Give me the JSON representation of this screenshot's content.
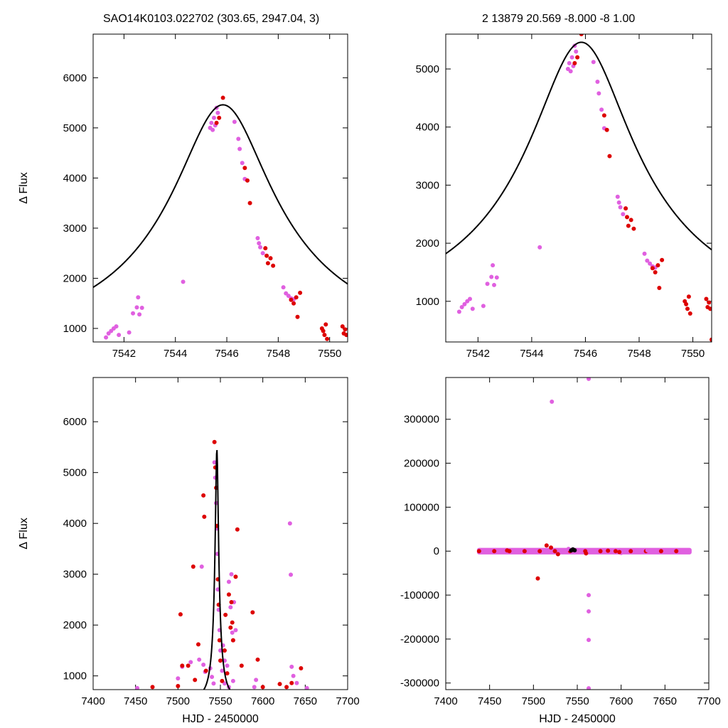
{
  "header": {
    "left": "SAO14K0103.022702 (303.65, 2947.04,    3)",
    "right": "2   13879   20.569   -8.000   -8   1.00"
  },
  "colors": {
    "band_a": "#e060e0",
    "band_b": "#dd0000",
    "model": "#000000"
  },
  "chart_data": [
    {
      "type": "scatter",
      "panel": "top-left",
      "xlim": [
        7540.8,
        7550.7
      ],
      "ylim": [
        730,
        6870
      ],
      "xticks": [
        7542,
        7544,
        7546,
        7548,
        7550
      ],
      "yticks": [
        1000,
        2000,
        3000,
        4000,
        5000,
        6000
      ],
      "xlabel": "",
      "ylabel": "Δ Flux",
      "model": {
        "t0": 7545.85,
        "fmax": 5460,
        "f0": 550,
        "u0": 0.155,
        "tE": 12.2
      },
      "series": [
        {
          "color": "#e060e0",
          "points": [
            [
              7541.3,
              820
            ],
            [
              7541.4,
              900
            ],
            [
              7541.5,
              950
            ],
            [
              7541.6,
              1000
            ],
            [
              7541.7,
              1040
            ],
            [
              7541.8,
              870
            ],
            [
              7542.2,
              920
            ],
            [
              7542.35,
              1300
            ],
            [
              7542.5,
              1420
            ],
            [
              7542.55,
              1620
            ],
            [
              7542.6,
              1280
            ],
            [
              7542.7,
              1410
            ],
            [
              7544.3,
              1930
            ],
            [
              7545.35,
              5000
            ],
            [
              7545.4,
              5100
            ],
            [
              7545.45,
              4960
            ],
            [
              7545.5,
              5200
            ],
            [
              7545.55,
              5050
            ],
            [
              7545.6,
              5400
            ],
            [
              7545.65,
              5300
            ],
            [
              7546.3,
              5120
            ],
            [
              7546.45,
              4780
            ],
            [
              7546.5,
              4580
            ],
            [
              7546.6,
              4300
            ],
            [
              7546.7,
              3980
            ],
            [
              7547.2,
              2800
            ],
            [
              7547.25,
              2700
            ],
            [
              7547.3,
              2620
            ],
            [
              7547.4,
              2500
            ],
            [
              7548.2,
              1820
            ],
            [
              7548.3,
              1700
            ],
            [
              7548.4,
              1650
            ],
            [
              7548.5,
              1600
            ],
            [
              7548.6,
              1580
            ]
          ]
        },
        {
          "color": "#dd0000",
          "points": [
            [
              7545.6,
              5100
            ],
            [
              7545.7,
              5200
            ],
            [
              7545.85,
              5600
            ],
            [
              7546.7,
              4200
            ],
            [
              7546.8,
              3950
            ],
            [
              7546.9,
              3500
            ],
            [
              7547.5,
              2600
            ],
            [
              7547.55,
              2450
            ],
            [
              7547.6,
              2300
            ],
            [
              7547.7,
              2400
            ],
            [
              7547.8,
              2250
            ],
            [
              7548.5,
              1570
            ],
            [
              7548.6,
              1500
            ],
            [
              7548.7,
              1620
            ],
            [
              7548.75,
              1230
            ],
            [
              7548.85,
              1710
            ],
            [
              7549.7,
              1000
            ],
            [
              7549.75,
              950
            ],
            [
              7549.8,
              870
            ],
            [
              7549.85,
              1080
            ],
            [
              7549.9,
              790
            ],
            [
              7550.5,
              1040
            ],
            [
              7550.55,
              900
            ],
            [
              7550.6,
              980
            ],
            [
              7550.65,
              870
            ]
          ]
        }
      ]
    },
    {
      "type": "scatter",
      "panel": "top-right",
      "xlim": [
        7540.8,
        7550.7
      ],
      "ylim": [
        300,
        5600
      ],
      "xticks": [
        7542,
        7544,
        7546,
        7548,
        7550
      ],
      "yticks": [
        1000,
        2000,
        3000,
        4000,
        5000
      ],
      "xlabel": "",
      "ylabel": "",
      "model": {
        "t0": 7545.85,
        "fmax": 5460,
        "f0": 550,
        "u0": 0.155,
        "tE": 12.2
      },
      "series": [
        {
          "color": "#e060e0",
          "points": [
            [
              7541.3,
              820
            ],
            [
              7541.4,
              900
            ],
            [
              7541.5,
              950
            ],
            [
              7541.6,
              1000
            ],
            [
              7541.7,
              1040
            ],
            [
              7541.8,
              870
            ],
            [
              7542.2,
              920
            ],
            [
              7542.35,
              1300
            ],
            [
              7542.5,
              1420
            ],
            [
              7542.55,
              1620
            ],
            [
              7542.6,
              1280
            ],
            [
              7542.7,
              1410
            ],
            [
              7544.3,
              1930
            ],
            [
              7545.35,
              5000
            ],
            [
              7545.4,
              5100
            ],
            [
              7545.45,
              4960
            ],
            [
              7545.5,
              5200
            ],
            [
              7545.55,
              5050
            ],
            [
              7545.6,
              5400
            ],
            [
              7545.65,
              5300
            ],
            [
              7546.3,
              5120
            ],
            [
              7546.45,
              4780
            ],
            [
              7546.5,
              4580
            ],
            [
              7546.6,
              4300
            ],
            [
              7546.7,
              3980
            ],
            [
              7547.2,
              2800
            ],
            [
              7547.25,
              2700
            ],
            [
              7547.3,
              2620
            ],
            [
              7547.4,
              2500
            ],
            [
              7548.2,
              1820
            ],
            [
              7548.3,
              1700
            ],
            [
              7548.4,
              1650
            ],
            [
              7548.5,
              1600
            ],
            [
              7548.6,
              1580
            ]
          ]
        },
        {
          "color": "#dd0000",
          "points": [
            [
              7545.6,
              5100
            ],
            [
              7545.7,
              5200
            ],
            [
              7545.85,
              5600
            ],
            [
              7546.7,
              4200
            ],
            [
              7546.8,
              3950
            ],
            [
              7546.9,
              3500
            ],
            [
              7547.5,
              2600
            ],
            [
              7547.55,
              2450
            ],
            [
              7547.6,
              2300
            ],
            [
              7547.7,
              2400
            ],
            [
              7547.8,
              2250
            ],
            [
              7548.5,
              1570
            ],
            [
              7548.6,
              1500
            ],
            [
              7548.7,
              1620
            ],
            [
              7548.75,
              1230
            ],
            [
              7548.85,
              1710
            ],
            [
              7549.7,
              1000
            ],
            [
              7549.75,
              950
            ],
            [
              7549.8,
              870
            ],
            [
              7549.85,
              1080
            ],
            [
              7549.9,
              790
            ],
            [
              7550.5,
              1040
            ],
            [
              7550.55,
              900
            ],
            [
              7550.6,
              980
            ],
            [
              7550.65,
              870
            ],
            [
              7550.7,
              340
            ]
          ]
        }
      ]
    },
    {
      "type": "scatter",
      "panel": "bottom-left",
      "xlim": [
        7400,
        7700
      ],
      "ylim": [
        730,
        6870
      ],
      "xticks": [
        7400,
        7450,
        7500,
        7550,
        7600,
        7650,
        7700
      ],
      "yticks": [
        1000,
        2000,
        3000,
        4000,
        5000,
        6000
      ],
      "xlabel": "HJD - 2450000",
      "ylabel": "Δ Flux",
      "model": {
        "t0": 7545.85,
        "fmax": 5460,
        "f0": 550,
        "u0": 0.155,
        "tE": 12.2
      },
      "series": [
        {
          "color": "#e060e0",
          "points": [
            [
              7452,
              760
            ],
            [
              7500,
              950
            ],
            [
              7505,
              1180
            ],
            [
              7515,
              1270
            ],
            [
              7525,
              1320
            ],
            [
              7530,
              1220
            ],
            [
              7532,
              1080
            ],
            [
              7528,
              3150
            ],
            [
              7538,
              1150
            ],
            [
              7540,
              980
            ],
            [
              7542,
              850
            ],
            [
              7543,
              5200
            ],
            [
              7544,
              4900
            ],
            [
              7545,
              4400
            ],
            [
              7546,
              3900
            ],
            [
              7546.5,
              3400
            ],
            [
              7547,
              2700
            ],
            [
              7548,
              2300
            ],
            [
              7549,
              1900
            ],
            [
              7550,
              1500
            ],
            [
              7552,
              1100
            ],
            [
              7553,
              1600
            ],
            [
              7555,
              1300
            ],
            [
              7558,
              1200
            ],
            [
              7560,
              2850
            ],
            [
              7562,
              2350
            ],
            [
              7563,
              3000
            ],
            [
              7564,
              1850
            ],
            [
              7565,
              1700
            ],
            [
              7566,
              2450
            ],
            [
              7568,
              1900
            ],
            [
              7555,
              850
            ],
            [
              7560,
              780
            ],
            [
              7565,
              900
            ],
            [
              7590,
              780
            ],
            [
              7592,
              920
            ],
            [
              7632,
              4000
            ],
            [
              7633,
              2990
            ],
            [
              7634,
              1180
            ],
            [
              7636,
              1000
            ],
            [
              7640,
              860
            ],
            [
              7652,
              760
            ]
          ]
        },
        {
          "color": "#dd0000",
          "points": [
            [
              7470,
              780
            ],
            [
              7500,
              800
            ],
            [
              7503,
              2210
            ],
            [
              7505,
              1200
            ],
            [
              7512,
              1200
            ],
            [
              7518,
              3150
            ],
            [
              7520,
              920
            ],
            [
              7524,
              1620
            ],
            [
              7530,
              4550
            ],
            [
              7531,
              4130
            ],
            [
              7533,
              1100
            ],
            [
              7543,
              5600
            ],
            [
              7544,
              5100
            ],
            [
              7545,
              4700
            ],
            [
              7546,
              3950
            ],
            [
              7547,
              2900
            ],
            [
              7548,
              2400
            ],
            [
              7549,
              1700
            ],
            [
              7550,
              1300
            ],
            [
              7552,
              900
            ],
            [
              7555,
              1500
            ],
            [
              7556,
              2200
            ],
            [
              7558,
              1050
            ],
            [
              7560,
              2600
            ],
            [
              7562,
              1950
            ],
            [
              7563,
              2450
            ],
            [
              7564,
              2050
            ],
            [
              7565,
              1700
            ],
            [
              7568,
              2950
            ],
            [
              7570,
              3880
            ],
            [
              7575,
              1200
            ],
            [
              7588,
              2250
            ],
            [
              7594,
              1320
            ],
            [
              7600,
              780
            ],
            [
              7620,
              840
            ],
            [
              7628,
              780
            ],
            [
              7634,
              860
            ],
            [
              7645,
              1150
            ]
          ]
        }
      ]
    },
    {
      "type": "scatter",
      "panel": "bottom-right",
      "xlim": [
        7400,
        7700
      ],
      "ylim": [
        -315000,
        395000
      ],
      "xticks": [
        7400,
        7450,
        7500,
        7550,
        7600,
        7650,
        7700
      ],
      "yticks": [
        -300000,
        -200000,
        -100000,
        0,
        100000,
        200000,
        300000
      ],
      "xlabel": "HJD - 2450000",
      "ylabel": "",
      "series": [
        {
          "color": "#e060e0",
          "points": [
            [
              7521,
              340000
            ],
            [
              7563,
              392000
            ],
            [
              7563,
              -100000
            ],
            [
              7563,
              -137000
            ],
            [
              7563,
              -202000
            ],
            [
              7563,
              -312000
            ],
            [
              7540,
              5000
            ],
            [
              7545,
              3000
            ],
            [
              7600,
              -4000
            ],
            [
              7630,
              2000
            ]
          ]
        },
        {
          "color": "#dd0000",
          "points": [
            [
              7505,
              -62000
            ],
            [
              7515,
              13000
            ],
            [
              7520,
              8000
            ],
            [
              7528,
              -7000
            ],
            [
              7470,
              1500
            ],
            [
              7585,
              1000
            ],
            [
              7598,
              -2000
            ],
            [
              7560,
              -5000
            ],
            [
              7545,
              2500
            ]
          ]
        },
        {
          "color": "#000000",
          "points": [
            [
              7545,
              4000
            ],
            [
              7547,
              2000
            ],
            [
              7543,
              1500
            ]
          ]
        }
      ],
      "band": {
        "x": [
          7438,
          7678
        ],
        "half_height": 2600
      }
    }
  ]
}
